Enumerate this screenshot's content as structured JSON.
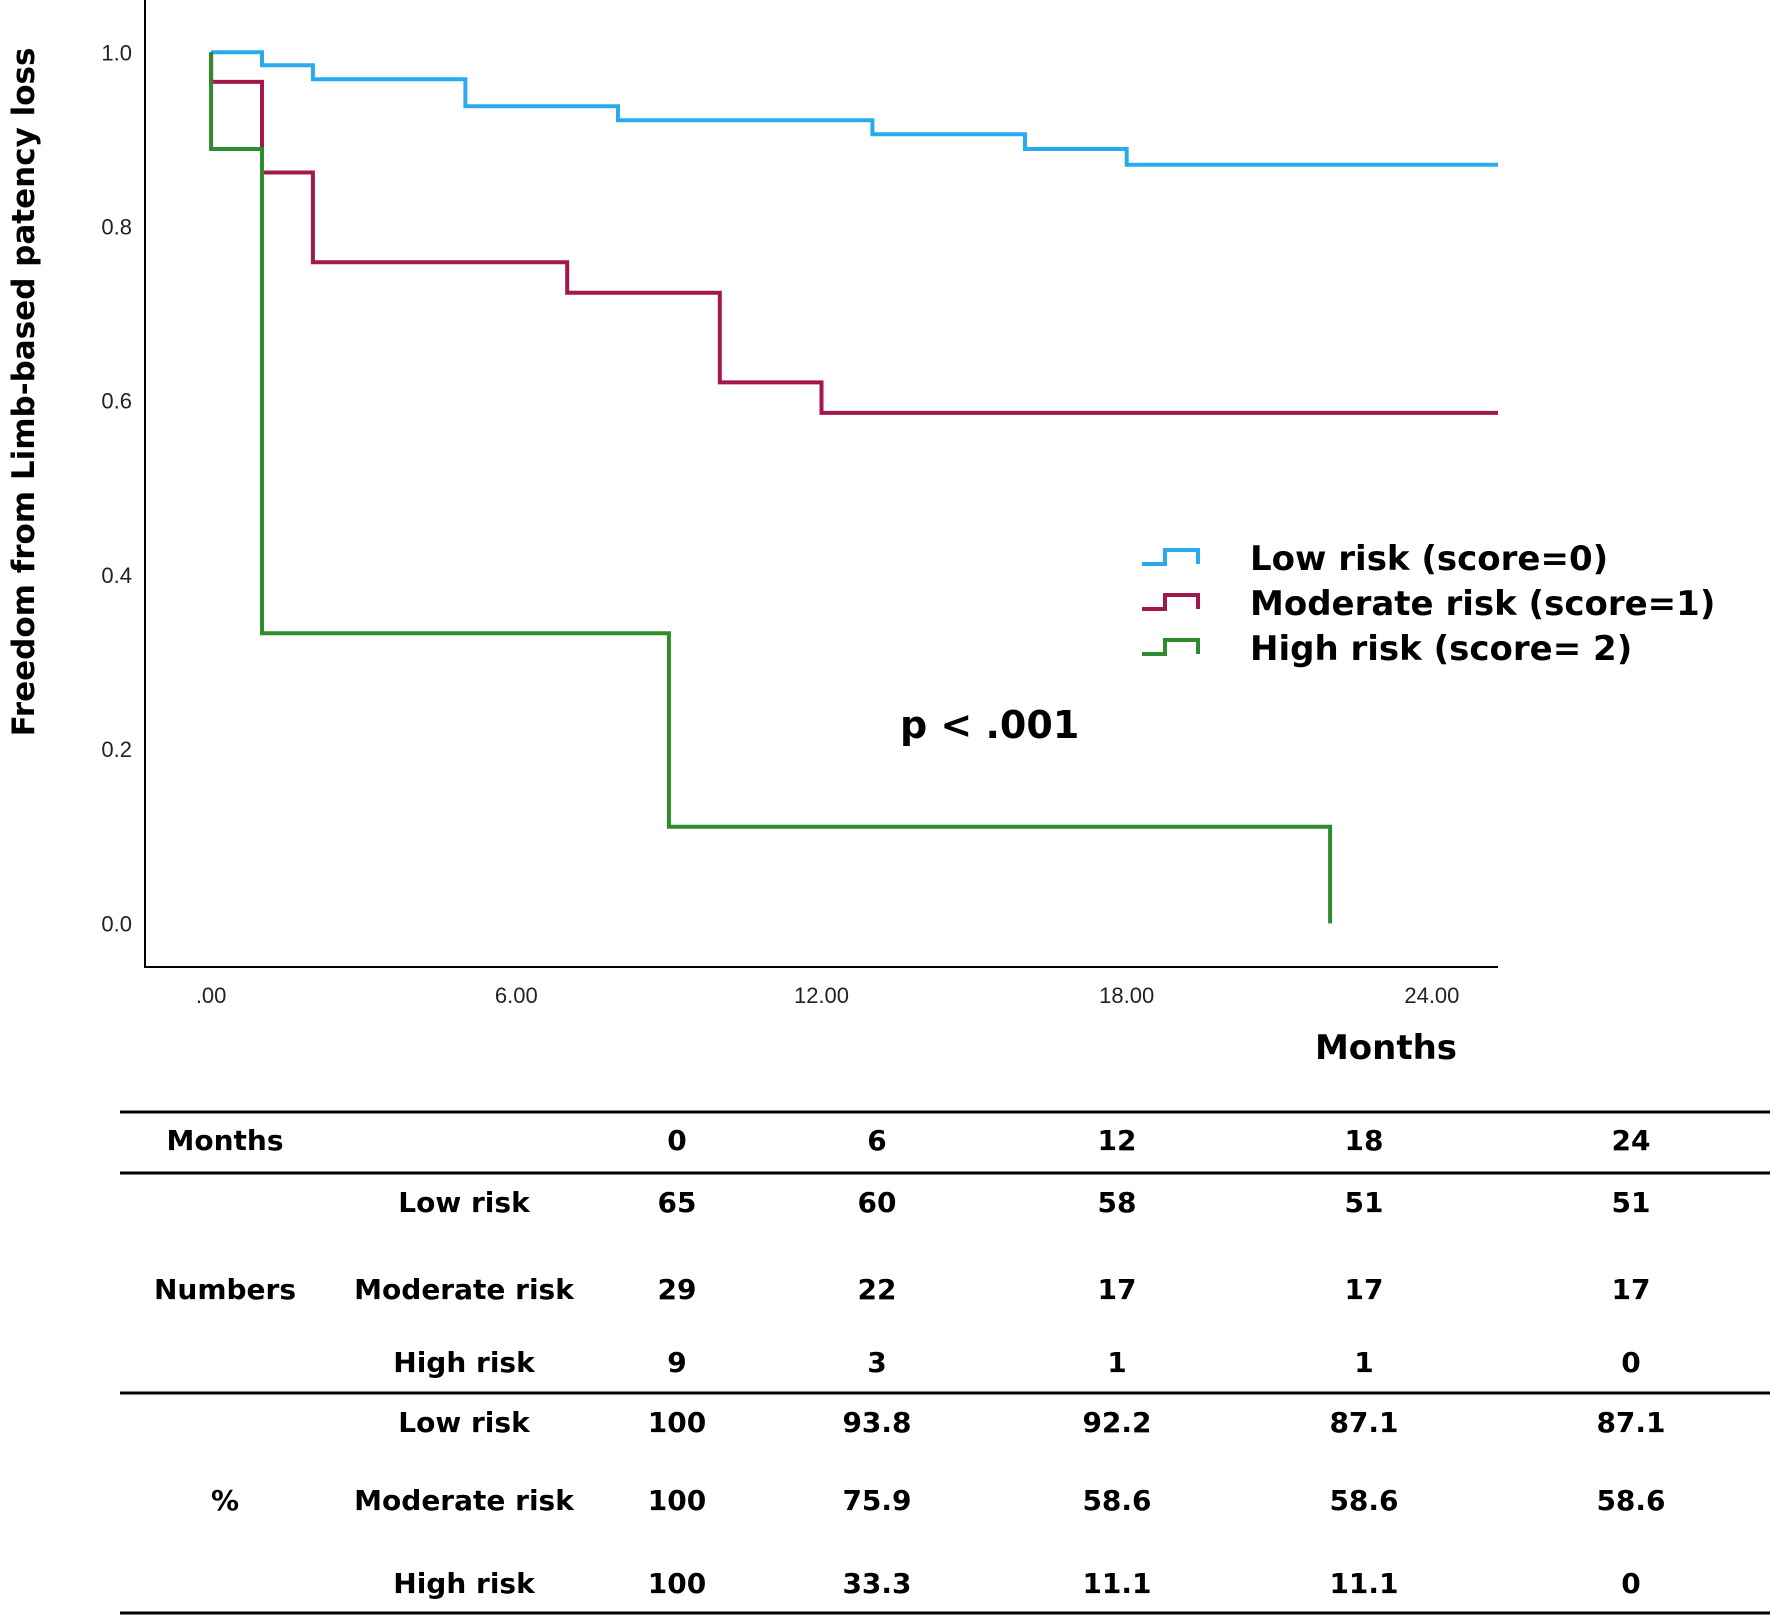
{
  "chart_data": {
    "type": "line",
    "title": "",
    "xlabel": "Months",
    "ylabel": "Freedom from Limb-based patency loss",
    "xlim": [
      -1.3,
      25.3
    ],
    "ylim": [
      -0.05,
      1.06
    ],
    "x_ticks": [
      ".00",
      "6.00",
      "12.00",
      "18.00",
      "24.00"
    ],
    "x_tick_values": [
      0,
      6,
      12,
      18,
      24
    ],
    "y_ticks": [
      "0.0",
      "0.2",
      "0.4",
      "0.6",
      "0.8",
      "1.0"
    ],
    "y_tick_values": [
      0,
      0.2,
      0.4,
      0.6,
      0.8,
      1.0
    ],
    "annotation": "p < .001",
    "series": [
      {
        "name": "Low risk (score=0)",
        "color": "#29aaec",
        "step_points": [
          [
            0,
            1.0
          ],
          [
            1,
            1.0
          ],
          [
            1,
            0.985
          ],
          [
            2,
            0.985
          ],
          [
            2,
            0.969
          ],
          [
            5,
            0.969
          ],
          [
            5,
            0.938
          ],
          [
            8,
            0.938
          ],
          [
            8,
            0.922
          ],
          [
            13,
            0.922
          ],
          [
            13,
            0.906
          ],
          [
            16,
            0.906
          ],
          [
            16,
            0.889
          ],
          [
            18,
            0.889
          ],
          [
            18,
            0.871
          ],
          [
            25.3,
            0.871
          ]
        ]
      },
      {
        "name": "Moderate risk (score=1)",
        "color": "#a3174f",
        "step_points": [
          [
            0,
            1.0
          ],
          [
            0,
            0.966
          ],
          [
            1,
            0.966
          ],
          [
            1,
            0.862
          ],
          [
            2,
            0.862
          ],
          [
            2,
            0.759
          ],
          [
            7,
            0.759
          ],
          [
            7,
            0.724
          ],
          [
            10,
            0.724
          ],
          [
            10,
            0.621
          ],
          [
            12,
            0.621
          ],
          [
            12,
            0.586
          ],
          [
            25.3,
            0.586
          ]
        ]
      },
      {
        "name": "High risk (score= 2)",
        "color": "#2e8b2e",
        "step_points": [
          [
            0,
            1.0
          ],
          [
            0,
            0.889
          ],
          [
            1,
            0.889
          ],
          [
            1,
            0.333
          ],
          [
            9,
            0.333
          ],
          [
            9,
            0.111
          ],
          [
            22,
            0.111
          ],
          [
            22,
            0.0
          ]
        ]
      }
    ]
  },
  "risk_table": {
    "header_label": "Months",
    "months": [
      "0",
      "6",
      "12",
      "18",
      "24"
    ],
    "groups": [
      {
        "label": "Numbers",
        "rows": [
          {
            "name": "Low risk",
            "values": [
              "65",
              "60",
              "58",
              "51",
              "51"
            ]
          },
          {
            "name": "Moderate risk",
            "values": [
              "29",
              "22",
              "17",
              "17",
              "17"
            ]
          },
          {
            "name": "High risk",
            "values": [
              "9",
              "3",
              "1",
              "1",
              "0"
            ]
          }
        ]
      },
      {
        "label": "%",
        "rows": [
          {
            "name": "Low risk",
            "values": [
              "100",
              "93.8",
              "92.2",
              "87.1",
              "87.1"
            ]
          },
          {
            "name": "Moderate risk",
            "values": [
              "100",
              "75.9",
              "58.6",
              "58.6",
              "58.6"
            ]
          },
          {
            "name": "High risk",
            "values": [
              "100",
              "33.3",
              "11.1",
              "11.1",
              "0"
            ]
          }
        ]
      }
    ]
  }
}
